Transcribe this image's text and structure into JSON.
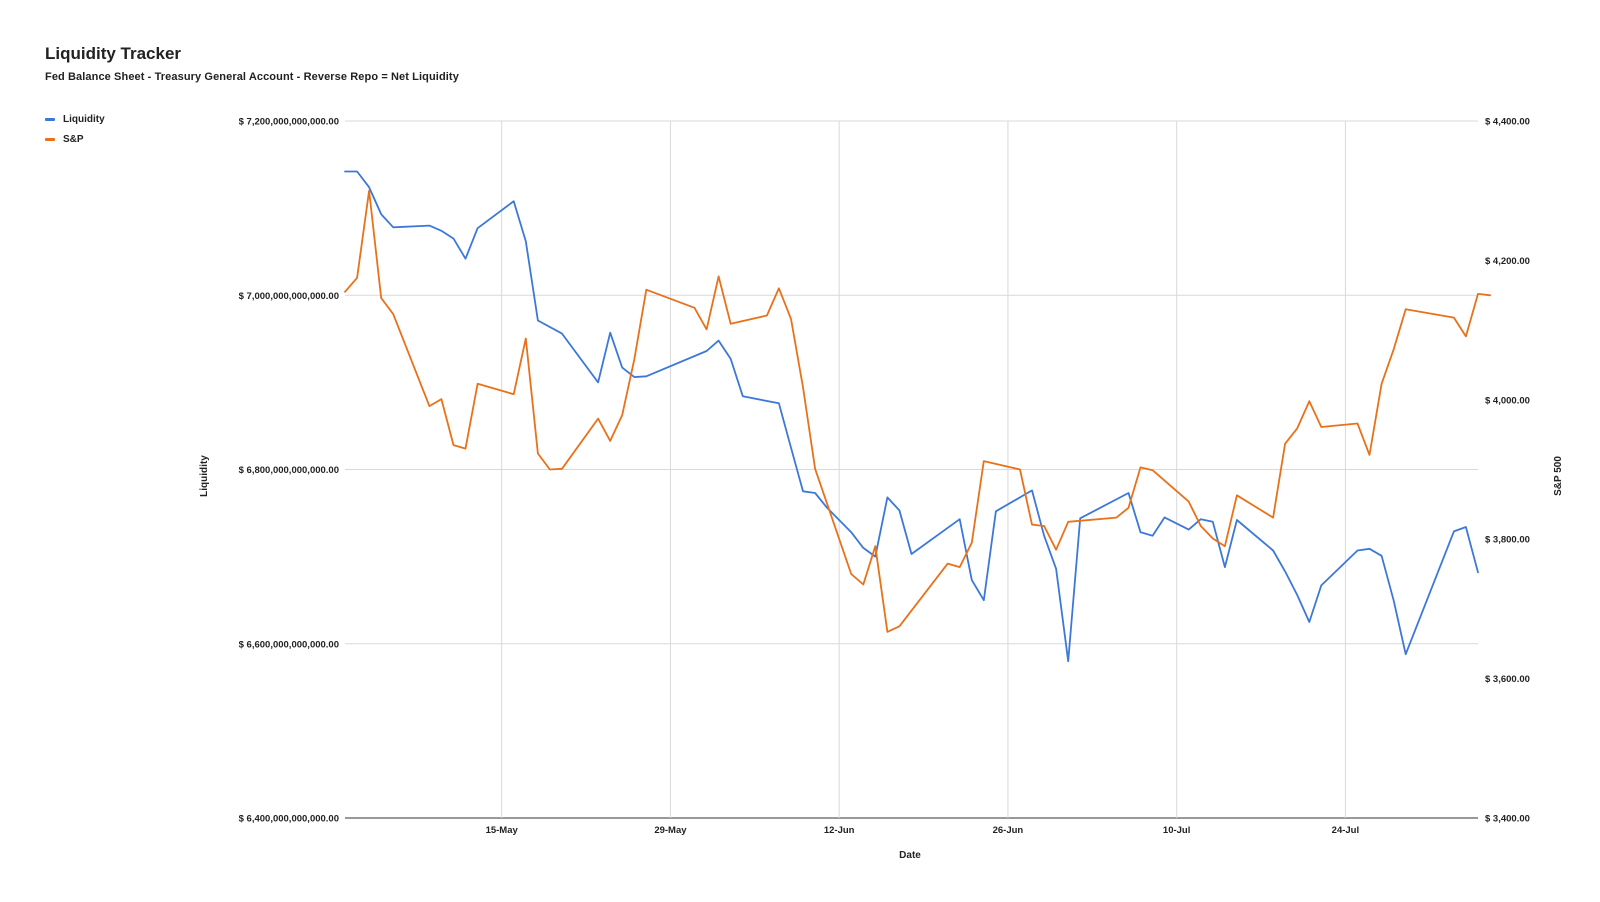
{
  "chart_data": {
    "type": "line",
    "title": "Liquidity Tracker",
    "subtitle": "Fed Balance Sheet - Treasury General Account - Reverse Repo = Net Liquidity",
    "xlabel": "Date",
    "ylabel_left": "Liquidity",
    "ylabel_right": "S&P 500",
    "x_range": [
      "2022-05-02",
      "2022-08-04"
    ],
    "x_ticks": [
      {
        "date": "2022-05-15",
        "label": "15-May"
      },
      {
        "date": "2022-05-29",
        "label": "29-May"
      },
      {
        "date": "2022-06-12",
        "label": "12-Jun"
      },
      {
        "date": "2022-06-26",
        "label": "26-Jun"
      },
      {
        "date": "2022-07-10",
        "label": "10-Jul"
      },
      {
        "date": "2022-07-24",
        "label": "24-Jul"
      }
    ],
    "ylim_left": [
      6400000000000,
      7200000000000
    ],
    "y_ticks_left": [
      {
        "value": 6400000000000,
        "label": "$ 6,400,000,000,000.00"
      },
      {
        "value": 6600000000000,
        "label": "$ 6,600,000,000,000.00"
      },
      {
        "value": 6800000000000,
        "label": "$ 6,800,000,000,000.00"
      },
      {
        "value": 7000000000000,
        "label": "$ 7,000,000,000,000.00"
      },
      {
        "value": 7200000000000,
        "label": "$ 7,200,000,000,000.00"
      }
    ],
    "ylim_right": [
      3400,
      4400
    ],
    "y_ticks_right": [
      {
        "value": 3400,
        "label": "$ 3,400.00"
      },
      {
        "value": 3600,
        "label": "$ 3,600.00"
      },
      {
        "value": 3800,
        "label": "$ 3,800.00"
      },
      {
        "value": 4000,
        "label": "$ 4,000.00"
      },
      {
        "value": 4200,
        "label": "$ 4,200.00"
      },
      {
        "value": 4400,
        "label": "$ 4,400.00"
      }
    ],
    "grid": true,
    "legend_position": "top-left",
    "series": [
      {
        "name": "Liquidity",
        "axis": "left",
        "color": "#3c78d8",
        "points": [
          {
            "x": "2022-05-02",
            "y": 7142000000000
          },
          {
            "x": "2022-05-03",
            "y": 7142000000000
          },
          {
            "x": "2022-05-04",
            "y": 7124000000000
          },
          {
            "x": "2022-05-05",
            "y": 7093000000000
          },
          {
            "x": "2022-05-06",
            "y": 7078000000000
          },
          {
            "x": "2022-05-09",
            "y": 7080000000000
          },
          {
            "x": "2022-05-10",
            "y": 7074000000000
          },
          {
            "x": "2022-05-11",
            "y": 7065000000000
          },
          {
            "x": "2022-05-12",
            "y": 7042000000000
          },
          {
            "x": "2022-05-13",
            "y": 7077000000000
          },
          {
            "x": "2022-05-16",
            "y": 7108000000000
          },
          {
            "x": "2022-05-17",
            "y": 7062000000000
          },
          {
            "x": "2022-05-18",
            "y": 6971000000000
          },
          {
            "x": "2022-05-20",
            "y": 6956000000000
          },
          {
            "x": "2022-05-23",
            "y": 6900000000000
          },
          {
            "x": "2022-05-24",
            "y": 6957000000000
          },
          {
            "x": "2022-05-25",
            "y": 6917000000000
          },
          {
            "x": "2022-05-26",
            "y": 6906000000000
          },
          {
            "x": "2022-05-27",
            "y": 6907000000000
          },
          {
            "x": "2022-06-01",
            "y": 6936000000000
          },
          {
            "x": "2022-06-02",
            "y": 6948000000000
          },
          {
            "x": "2022-06-03",
            "y": 6927000000000
          },
          {
            "x": "2022-06-04",
            "y": 6884000000000
          },
          {
            "x": "2022-06-07",
            "y": 6876000000000
          },
          {
            "x": "2022-06-08",
            "y": 6825000000000
          },
          {
            "x": "2022-06-09",
            "y": 6775000000000
          },
          {
            "x": "2022-06-10",
            "y": 6773000000000
          },
          {
            "x": "2022-06-11",
            "y": 6756000000000
          },
          {
            "x": "2022-06-13",
            "y": 6728000000000
          },
          {
            "x": "2022-06-14",
            "y": 6710000000000
          },
          {
            "x": "2022-06-15",
            "y": 6700000000000
          },
          {
            "x": "2022-06-16",
            "y": 6768000000000
          },
          {
            "x": "2022-06-17",
            "y": 6753000000000
          },
          {
            "x": "2022-06-18",
            "y": 6703000000000
          },
          {
            "x": "2022-06-22",
            "y": 6743000000000
          },
          {
            "x": "2022-06-23",
            "y": 6673000000000
          },
          {
            "x": "2022-06-24",
            "y": 6650000000000
          },
          {
            "x": "2022-06-25",
            "y": 6752000000000
          },
          {
            "x": "2022-06-28",
            "y": 6776000000000
          },
          {
            "x": "2022-06-29",
            "y": 6724000000000
          },
          {
            "x": "2022-06-30",
            "y": 6686000000000
          },
          {
            "x": "2022-07-01",
            "y": 6580000000000
          },
          {
            "x": "2022-07-02",
            "y": 6744000000000
          },
          {
            "x": "2022-07-06",
            "y": 6773000000000
          },
          {
            "x": "2022-07-07",
            "y": 6728000000000
          },
          {
            "x": "2022-07-08",
            "y": 6724000000000
          },
          {
            "x": "2022-07-09",
            "y": 6745000000000
          },
          {
            "x": "2022-07-11",
            "y": 6731000000000
          },
          {
            "x": "2022-07-12",
            "y": 6743000000000
          },
          {
            "x": "2022-07-13",
            "y": 6740000000000
          },
          {
            "x": "2022-07-14",
            "y": 6688000000000
          },
          {
            "x": "2022-07-15",
            "y": 6742000000000
          },
          {
            "x": "2022-07-18",
            "y": 6707000000000
          },
          {
            "x": "2022-07-19",
            "y": 6683000000000
          },
          {
            "x": "2022-07-20",
            "y": 6656000000000
          },
          {
            "x": "2022-07-21",
            "y": 6625000000000
          },
          {
            "x": "2022-07-22",
            "y": 6667000000000
          },
          {
            "x": "2022-07-25",
            "y": 6707000000000
          },
          {
            "x": "2022-07-26",
            "y": 6709000000000
          },
          {
            "x": "2022-07-27",
            "y": 6701000000000
          },
          {
            "x": "2022-07-28",
            "y": 6650000000000
          },
          {
            "x": "2022-07-29",
            "y": 6588000000000
          },
          {
            "x": "2022-08-02",
            "y": 6729000000000
          },
          {
            "x": "2022-08-03",
            "y": 6734000000000
          },
          {
            "x": "2022-08-04",
            "y": 6682000000000
          }
        ]
      },
      {
        "name": "S&P",
        "axis": "right",
        "color": "#e8711a",
        "points": [
          {
            "x": "2022-05-02",
            "y": 4155
          },
          {
            "x": "2022-05-03",
            "y": 4175
          },
          {
            "x": "2022-05-04",
            "y": 4300
          },
          {
            "x": "2022-05-05",
            "y": 4146
          },
          {
            "x": "2022-05-06",
            "y": 4123
          },
          {
            "x": "2022-05-09",
            "y": 3991
          },
          {
            "x": "2022-05-10",
            "y": 4001
          },
          {
            "x": "2022-05-11",
            "y": 3935
          },
          {
            "x": "2022-05-12",
            "y": 3930
          },
          {
            "x": "2022-05-13",
            "y": 4023
          },
          {
            "x": "2022-05-16",
            "y": 4008
          },
          {
            "x": "2022-05-17",
            "y": 4088
          },
          {
            "x": "2022-05-18",
            "y": 3923
          },
          {
            "x": "2022-05-19",
            "y": 3900
          },
          {
            "x": "2022-05-20",
            "y": 3901
          },
          {
            "x": "2022-05-23",
            "y": 3973
          },
          {
            "x": "2022-05-24",
            "y": 3941
          },
          {
            "x": "2022-05-25",
            "y": 3978
          },
          {
            "x": "2022-05-26",
            "y": 4058
          },
          {
            "x": "2022-05-27",
            "y": 4158
          },
          {
            "x": "2022-05-31",
            "y": 4132
          },
          {
            "x": "2022-06-01",
            "y": 4101
          },
          {
            "x": "2022-06-02",
            "y": 4177
          },
          {
            "x": "2022-06-03",
            "y": 4109
          },
          {
            "x": "2022-06-06",
            "y": 4121
          },
          {
            "x": "2022-06-07",
            "y": 4160
          },
          {
            "x": "2022-06-08",
            "y": 4116
          },
          {
            "x": "2022-06-09",
            "y": 4018
          },
          {
            "x": "2022-06-10",
            "y": 3901
          },
          {
            "x": "2022-06-13",
            "y": 3750
          },
          {
            "x": "2022-06-14",
            "y": 3735
          },
          {
            "x": "2022-06-15",
            "y": 3790
          },
          {
            "x": "2022-06-16",
            "y": 3667
          },
          {
            "x": "2022-06-17",
            "y": 3675
          },
          {
            "x": "2022-06-21",
            "y": 3765
          },
          {
            "x": "2022-06-22",
            "y": 3760
          },
          {
            "x": "2022-06-23",
            "y": 3795
          },
          {
            "x": "2022-06-24",
            "y": 3912
          },
          {
            "x": "2022-06-27",
            "y": 3900
          },
          {
            "x": "2022-06-28",
            "y": 3821
          },
          {
            "x": "2022-06-29",
            "y": 3819
          },
          {
            "x": "2022-06-30",
            "y": 3785
          },
          {
            "x": "2022-07-01",
            "y": 3825
          },
          {
            "x": "2022-07-05",
            "y": 3831
          },
          {
            "x": "2022-07-06",
            "y": 3845
          },
          {
            "x": "2022-07-07",
            "y": 3903
          },
          {
            "x": "2022-07-08",
            "y": 3899
          },
          {
            "x": "2022-07-11",
            "y": 3854
          },
          {
            "x": "2022-07-12",
            "y": 3819
          },
          {
            "x": "2022-07-13",
            "y": 3801
          },
          {
            "x": "2022-07-14",
            "y": 3790
          },
          {
            "x": "2022-07-15",
            "y": 3863
          },
          {
            "x": "2022-07-18",
            "y": 3831
          },
          {
            "x": "2022-07-19",
            "y": 3937
          },
          {
            "x": "2022-07-20",
            "y": 3959
          },
          {
            "x": "2022-07-21",
            "y": 3998
          },
          {
            "x": "2022-07-22",
            "y": 3961
          },
          {
            "x": "2022-07-25",
            "y": 3966
          },
          {
            "x": "2022-07-26",
            "y": 3921
          },
          {
            "x": "2022-07-27",
            "y": 4023
          },
          {
            "x": "2022-07-28",
            "y": 4072
          },
          {
            "x": "2022-07-29",
            "y": 4130
          },
          {
            "x": "2022-08-02",
            "y": 4118
          },
          {
            "x": "2022-08-03",
            "y": 4091
          },
          {
            "x": "2022-08-04",
            "y": 4152
          },
          {
            "x": "2022-08-05",
            "y": 4150
          }
        ]
      }
    ]
  }
}
